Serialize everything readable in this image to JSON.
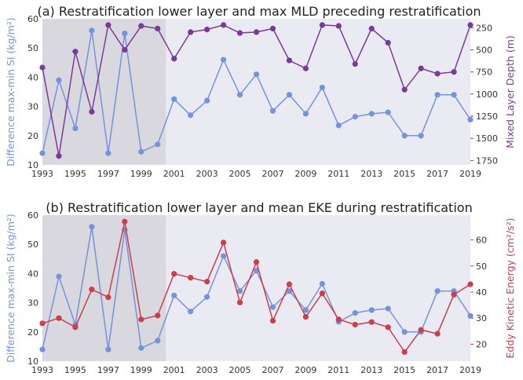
{
  "colors": {
    "si": "#7592dd",
    "mld": "#7a3a9a",
    "eke": "#cb3f4d",
    "plot_bg": "#eaeaf2",
    "shade": "#d8d8de"
  },
  "chart_data": [
    {
      "type": "line",
      "title": "(a) Restratification lower layer and max MLD preceding restratification",
      "xlabel": "",
      "x": [
        1993,
        1994,
        1995,
        1996,
        1997,
        1998,
        1999,
        2000,
        2001,
        2002,
        2003,
        2004,
        2005,
        2006,
        2007,
        2008,
        2009,
        2010,
        2011,
        2012,
        2013,
        2014,
        2015,
        2016,
        2017,
        2018,
        2019
      ],
      "xticks": [
        "1993",
        "1995",
        "1997",
        "1999",
        "2001",
        "2003",
        "2005",
        "2007",
        "2009",
        "2011",
        "2013",
        "2015",
        "2017",
        "2019"
      ],
      "xlim": [
        1993,
        2019
      ],
      "shaded_x_range": [
        1993,
        2000.5
      ],
      "grid": false,
      "left_axis": {
        "label": "Difference max-min SI (kg/m²)",
        "ylim": [
          10,
          60
        ],
        "ticks": [
          "10",
          "20",
          "30",
          "40",
          "50",
          "60"
        ]
      },
      "right_axis": {
        "label": "Mixed Layer Depth (m)",
        "ylim": [
          1800,
          150
        ],
        "inverted": true,
        "ticks": [
          "250",
          "500",
          "750",
          "1000",
          "1250",
          "1500",
          "1750"
        ]
      },
      "series": [
        {
          "axis": "left",
          "values": [
            14,
            39,
            22.5,
            56,
            14,
            55,
            14.5,
            17,
            32.5,
            27,
            32,
            46,
            34,
            41,
            28.5,
            34,
            27.5,
            36.5,
            23.5,
            26.5,
            27.5,
            28,
            20,
            20,
            34,
            34,
            25.5
          ]
        },
        {
          "axis": "right",
          "values": [
            700,
            1700,
            520,
            1200,
            220,
            500,
            230,
            260,
            600,
            300,
            270,
            220,
            310,
            300,
            260,
            620,
            710,
            220,
            230,
            660,
            260,
            420,
            950,
            710,
            770,
            750,
            220
          ]
        }
      ]
    },
    {
      "type": "line",
      "title": "(b) Restratification lower layer and mean EKE during restratification",
      "xlabel": "",
      "x": [
        1993,
        1994,
        1995,
        1996,
        1997,
        1998,
        1999,
        2000,
        2001,
        2002,
        2003,
        2004,
        2005,
        2006,
        2007,
        2008,
        2009,
        2010,
        2011,
        2012,
        2013,
        2014,
        2015,
        2016,
        2017,
        2018,
        2019
      ],
      "xticks": [
        "1993",
        "1995",
        "1997",
        "1999",
        "2001",
        "2003",
        "2005",
        "2007",
        "2009",
        "2011",
        "2013",
        "2015",
        "2017",
        "2019"
      ],
      "xlim": [
        1993,
        2019
      ],
      "shaded_x_range": [
        1993,
        2000.5
      ],
      "grid": false,
      "left_axis": {
        "label": "Difference max-min SI (kg/m²)",
        "ylim": [
          10,
          60
        ],
        "ticks": [
          "10",
          "20",
          "30",
          "40",
          "50",
          "60"
        ]
      },
      "right_axis": {
        "label": "Eddy Kinetic Energy (cm²/s²)",
        "ylim": [
          13.5,
          69.5
        ],
        "ticks": [
          "20",
          "30",
          "40",
          "50",
          "60"
        ]
      },
      "series": [
        {
          "axis": "left",
          "values": [
            14,
            39,
            22.5,
            56,
            14,
            55,
            14.5,
            17,
            32.5,
            27,
            32,
            46,
            34,
            41,
            28.5,
            34,
            27.5,
            36.5,
            23.5,
            26.5,
            27.5,
            28,
            20,
            20,
            34,
            34,
            25.5
          ]
        },
        {
          "axis": "right",
          "values": [
            28,
            30,
            26.5,
            41,
            38,
            67,
            29.5,
            31,
            47,
            45.5,
            44,
            59,
            36,
            51.5,
            29,
            43,
            30.5,
            39.5,
            29.5,
            27.5,
            28.5,
            26.5,
            17,
            25.5,
            24,
            39,
            43
          ]
        }
      ]
    }
  ]
}
